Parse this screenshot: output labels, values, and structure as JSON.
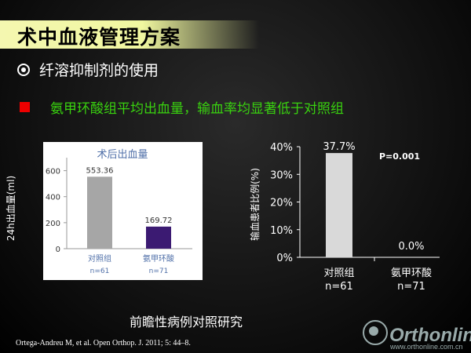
{
  "slide": {
    "title": "术中血液管理方案",
    "bullet": "纤溶抑制剂的使用",
    "highlight": "氨甲环酸组平均出血量，输血率均显著低于对照组",
    "footer": "前瞻性病例对照研究",
    "citation": "Ortega-Andreu M, et al. Open Orthop. J. 2011; 5: 44–8.",
    "logo_text": "Orthonline",
    "logo_url": "www.orthonline.com.cn"
  },
  "colors": {
    "title_bar": "#f0f7a0",
    "highlight_text": "#39d20f",
    "red_marker": "#ee0000",
    "left_bar_control": "#a6a6a6",
    "left_bar_txa": "#3b1a72",
    "right_bar": "#d9d9d9"
  },
  "chart_data": [
    {
      "type": "bar",
      "title": "术后出血量",
      "ylabel": "24h出血量(ml)",
      "ylim": [
        0,
        700
      ],
      "yticks": [
        "0",
        "200",
        "400",
        "600"
      ],
      "categories": [
        "对照组",
        "氨甲环酸"
      ],
      "category_sublabels": [
        "n=61",
        "n=71"
      ],
      "values": [
        553.36,
        169.72
      ],
      "value_labels": [
        "553.36",
        "169.72"
      ],
      "grid": false
    },
    {
      "type": "bar",
      "ylabel": "输血患者比例(%)",
      "ylim": [
        0,
        40
      ],
      "yticks": [
        "0%",
        "10%",
        "20%",
        "30%",
        "40%"
      ],
      "categories": [
        "对照组",
        "氨甲环酸"
      ],
      "category_sublabels": [
        "n=61",
        "n=71"
      ],
      "values": [
        37.7,
        0.0
      ],
      "value_labels": [
        "37.7%",
        "0.0%"
      ],
      "annotation": "P=0.001",
      "grid": false
    }
  ]
}
